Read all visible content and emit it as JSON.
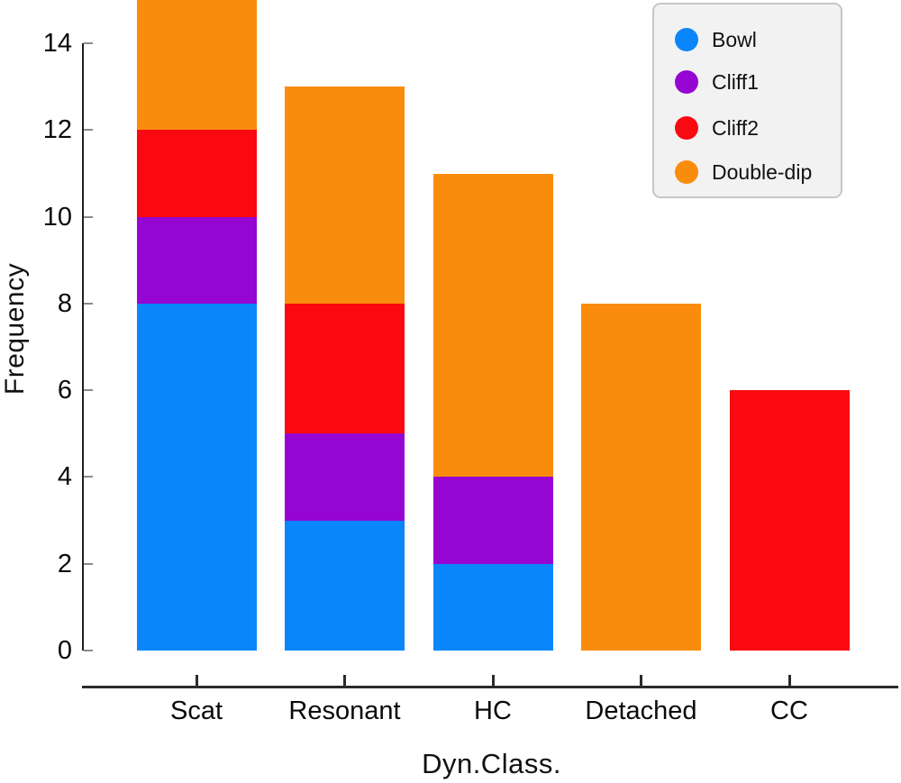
{
  "chart_data": {
    "type": "bar",
    "stacked": true,
    "xlabel": "Dyn.Class.",
    "ylabel": "Frequency",
    "categories": [
      "Scat",
      "Resonant",
      "HC",
      "Detached",
      "CC"
    ],
    "series": [
      {
        "name": "Bowl",
        "color": "#0B86FA",
        "values": [
          8,
          3,
          2,
          0,
          0
        ]
      },
      {
        "name": "Cliff1",
        "color": "#9606D2",
        "values": [
          2,
          2,
          2,
          0,
          0
        ]
      },
      {
        "name": "Cliff2",
        "color": "#FA0A10",
        "values": [
          2,
          3,
          0,
          0,
          6
        ]
      },
      {
        "name": "Double-dip",
        "color": "#FA8C0D",
        "values": [
          3,
          5,
          7,
          8,
          0
        ]
      }
    ],
    "totals": [
      15,
      13,
      11,
      8,
      6
    ],
    "ylim": [
      0,
      15
    ],
    "yticks": [
      0,
      2,
      4,
      6,
      8,
      10,
      12,
      14
    ],
    "grid": false,
    "legend": {
      "position": "top-right",
      "labels": [
        "Bowl",
        "Cliff1",
        "Cliff2",
        "Double-dip"
      ],
      "background": "#F2F2F2",
      "border_color": "#C7C7C7"
    },
    "axis_style": {
      "spine_color": "#1F1F1F",
      "y_tick_color": "#8A8A8A",
      "x_tick_color": "#2B2B2B",
      "text_color": "#111111"
    }
  }
}
